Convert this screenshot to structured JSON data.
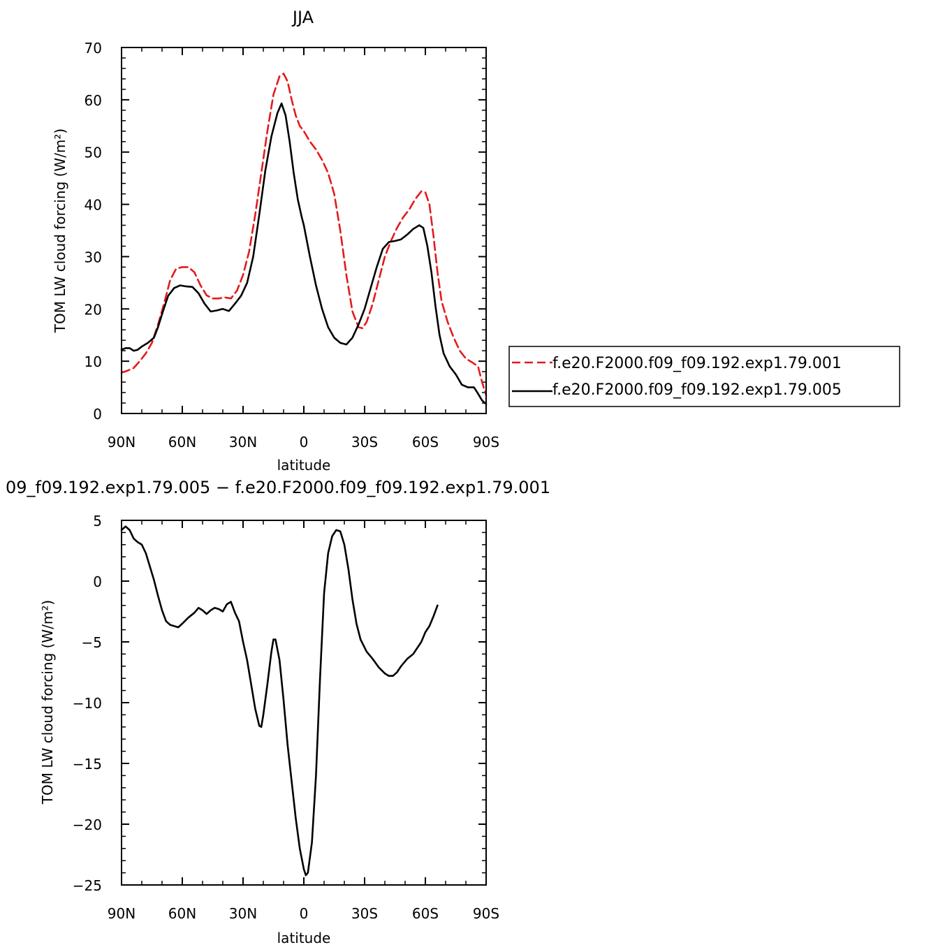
{
  "chart_data": [
    {
      "type": "line",
      "title": "JJA",
      "xlabel": "latitude",
      "ylabel": "TOM LW cloud forcing (W/m²)",
      "xlim": [
        90,
        -90
      ],
      "ylim": [
        0,
        70
      ],
      "x_ticks": [
        {
          "value": 90,
          "label": "90N"
        },
        {
          "value": 60,
          "label": "60N"
        },
        {
          "value": 30,
          "label": "30N"
        },
        {
          "value": 0,
          "label": "0"
        },
        {
          "value": -30,
          "label": "30S"
        },
        {
          "value": -60,
          "label": "60S"
        },
        {
          "value": -90,
          "label": "90S"
        }
      ],
      "y_ticks": [
        {
          "value": 0,
          "label": "0"
        },
        {
          "value": 10,
          "label": "10"
        },
        {
          "value": 20,
          "label": "20"
        },
        {
          "value": 30,
          "label": "30"
        },
        {
          "value": 40,
          "label": "40"
        },
        {
          "value": 50,
          "label": "50"
        },
        {
          "value": 60,
          "label": "60"
        },
        {
          "value": 70,
          "label": "70"
        }
      ],
      "grid": false,
      "legend_position": "right",
      "series": [
        {
          "name": "f.e20.F2000.f09_f09.192.exp1.79.001",
          "color": "#e41a1c",
          "dash": "dashed",
          "points": [
            [
              90,
              7.8
            ],
            [
              87,
              8.2
            ],
            [
              84,
              8.7
            ],
            [
              81,
              10
            ],
            [
              78,
              11.5
            ],
            [
              75,
              13.5
            ],
            [
              72,
              17
            ],
            [
              69,
              21
            ],
            [
              66,
              25.5
            ],
            [
              63,
              27.7
            ],
            [
              60,
              28
            ],
            [
              57,
              28
            ],
            [
              54,
              27
            ],
            [
              51,
              24.5
            ],
            [
              48,
              22.6
            ],
            [
              45,
              22
            ],
            [
              42,
              22
            ],
            [
              39,
              22.2
            ],
            [
              36,
              22
            ],
            [
              33,
              23.5
            ],
            [
              30,
              26.5
            ],
            [
              27,
              31
            ],
            [
              24,
              38
            ],
            [
              21,
              46
            ],
            [
              18,
              54
            ],
            [
              15,
              61
            ],
            [
              12,
              64.5
            ],
            [
              10,
              65
            ],
            [
              8,
              63.5
            ],
            [
              6,
              60
            ],
            [
              4,
              57
            ],
            [
              2,
              55
            ],
            [
              0,
              54
            ],
            [
              -3,
              52
            ],
            [
              -6,
              50.5
            ],
            [
              -9,
              48.5
            ],
            [
              -12,
              46
            ],
            [
              -15,
              42
            ],
            [
              -18,
              35
            ],
            [
              -21,
              26.5
            ],
            [
              -24,
              19.5
            ],
            [
              -27,
              16.5
            ],
            [
              -29,
              16.3
            ],
            [
              -31,
              17.5
            ],
            [
              -34,
              21
            ],
            [
              -37,
              25.5
            ],
            [
              -40,
              30
            ],
            [
              -43,
              33
            ],
            [
              -46,
              35.5
            ],
            [
              -49,
              37.5
            ],
            [
              -52,
              39
            ],
            [
              -55,
              41
            ],
            [
              -58,
              42.5
            ],
            [
              -60,
              42.3
            ],
            [
              -62,
              40
            ],
            [
              -64,
              34
            ],
            [
              -66,
              27
            ],
            [
              -68,
              21.5
            ],
            [
              -71,
              17.5
            ],
            [
              -74,
              14.5
            ],
            [
              -77,
              12
            ],
            [
              -80,
              10.5
            ],
            [
              -83,
              9.8
            ],
            [
              -86,
              9
            ],
            [
              -88,
              6
            ],
            [
              -90,
              3.5
            ]
          ]
        },
        {
          "name": "f.e20.F2000.f09_f09.192.exp1.79.005",
          "color": "#000000",
          "dash": "solid",
          "points": [
            [
              90,
              12.2
            ],
            [
              88,
              12.5
            ],
            [
              86,
              12.5
            ],
            [
              84,
              12
            ],
            [
              82,
              12.2
            ],
            [
              80,
              12.8
            ],
            [
              77,
              13.5
            ],
            [
              74,
              14.5
            ],
            [
              72,
              16.5
            ],
            [
              70,
              19
            ],
            [
              67,
              22.5
            ],
            [
              64,
              24
            ],
            [
              61,
              24.5
            ],
            [
              58,
              24.3
            ],
            [
              55,
              24.2
            ],
            [
              52,
              23
            ],
            [
              49,
              21
            ],
            [
              46,
              19.5
            ],
            [
              43,
              19.7
            ],
            [
              40,
              20
            ],
            [
              37,
              19.6
            ],
            [
              34,
              21
            ],
            [
              31,
              22.5
            ],
            [
              28,
              25
            ],
            [
              25,
              30
            ],
            [
              22,
              38
            ],
            [
              19,
              46.5
            ],
            [
              16,
              53
            ],
            [
              13,
              57.5
            ],
            [
              11,
              59.3
            ],
            [
              9,
              57
            ],
            [
              7,
              52
            ],
            [
              5,
              46
            ],
            [
              3,
              41
            ],
            [
              1,
              37.5
            ],
            [
              0,
              36
            ],
            [
              -3,
              30
            ],
            [
              -6,
              24.5
            ],
            [
              -9,
              20
            ],
            [
              -12,
              16.5
            ],
            [
              -15,
              14.5
            ],
            [
              -18,
              13.5
            ],
            [
              -21,
              13.2
            ],
            [
              -24,
              14.5
            ],
            [
              -27,
              17
            ],
            [
              -30,
              20
            ],
            [
              -33,
              24
            ],
            [
              -36,
              28
            ],
            [
              -39,
              31.5
            ],
            [
              -42,
              32.8
            ],
            [
              -45,
              33
            ],
            [
              -48,
              33.3
            ],
            [
              -51,
              34.2
            ],
            [
              -54,
              35.3
            ],
            [
              -57,
              36
            ],
            [
              -59,
              35.5
            ],
            [
              -61,
              32
            ],
            [
              -63,
              27
            ],
            [
              -65,
              20.5
            ],
            [
              -67,
              15
            ],
            [
              -69,
              11.5
            ],
            [
              -72,
              9
            ],
            [
              -75,
              7.5
            ],
            [
              -78,
              5.5
            ],
            [
              -81,
              5
            ],
            [
              -84,
              5
            ],
            [
              -86,
              3.8
            ],
            [
              -88,
              2.5
            ],
            [
              -90,
              1.8
            ]
          ]
        }
      ]
    },
    {
      "type": "line",
      "title": "09_f09.192.exp1.79.005 − f.e20.F2000.f09_f09.192.exp1.79.001",
      "xlabel": "latitude",
      "ylabel": "TOM LW cloud forcing (W/m²)",
      "xlim": [
        90,
        -90
      ],
      "ylim": [
        -25,
        5
      ],
      "x_ticks": [
        {
          "value": 90,
          "label": "90N"
        },
        {
          "value": 60,
          "label": "60N"
        },
        {
          "value": 30,
          "label": "30N"
        },
        {
          "value": 0,
          "label": "0"
        },
        {
          "value": -30,
          "label": "30S"
        },
        {
          "value": -60,
          "label": "60S"
        },
        {
          "value": -90,
          "label": "90S"
        }
      ],
      "y_ticks": [
        {
          "value": -25,
          "label": "−25"
        },
        {
          "value": -20,
          "label": "−20"
        },
        {
          "value": -15,
          "label": "−15"
        },
        {
          "value": -10,
          "label": "−10"
        },
        {
          "value": -5,
          "label": "−5"
        },
        {
          "value": 0,
          "label": "0"
        },
        {
          "value": 5,
          "label": "5"
        }
      ],
      "grid": false,
      "series": [
        {
          "color": "#000000",
          "dash": "solid",
          "points": [
            [
              90,
              4.2
            ],
            [
              88,
              4.5
            ],
            [
              86,
              4.2
            ],
            [
              84,
              3.5
            ],
            [
              82,
              3.2
            ],
            [
              80,
              3
            ],
            [
              78,
              2.3
            ],
            [
              76,
              1.2
            ],
            [
              74,
              0.1
            ],
            [
              72,
              -1.2
            ],
            [
              70,
              -2.4
            ],
            [
              68,
              -3.3
            ],
            [
              66,
              -3.6
            ],
            [
              64,
              -3.7
            ],
            [
              62,
              -3.8
            ],
            [
              60,
              -3.5
            ],
            [
              57,
              -3
            ],
            [
              54,
              -2.6
            ],
            [
              52,
              -2.2
            ],
            [
              50,
              -2.4
            ],
            [
              48,
              -2.7
            ],
            [
              46,
              -2.4
            ],
            [
              44,
              -2.2
            ],
            [
              42,
              -2.3
            ],
            [
              40,
              -2.5
            ],
            [
              38,
              -1.9
            ],
            [
              36,
              -1.7
            ],
            [
              34,
              -2.6
            ],
            [
              32,
              -3.3
            ],
            [
              30,
              -5
            ],
            [
              28,
              -6.5
            ],
            [
              26,
              -8.5
            ],
            [
              24,
              -10.5
            ],
            [
              22,
              -11.9
            ],
            [
              21,
              -12
            ],
            [
              20,
              -11
            ],
            [
              18,
              -8.5
            ],
            [
              16,
              -5.8
            ],
            [
              15,
              -4.8
            ],
            [
              14,
              -4.8
            ],
            [
              12,
              -6.5
            ],
            [
              10,
              -9.8
            ],
            [
              8,
              -13.5
            ],
            [
              6,
              -16.5
            ],
            [
              4,
              -19.5
            ],
            [
              2,
              -22
            ],
            [
              0,
              -23.7
            ],
            [
              -1,
              -24.2
            ],
            [
              -2,
              -24
            ],
            [
              -4,
              -21.5
            ],
            [
              -6,
              -16
            ],
            [
              -8,
              -8
            ],
            [
              -10,
              -1
            ],
            [
              -12,
              2.3
            ],
            [
              -14,
              3.7
            ],
            [
              -16,
              4.2
            ],
            [
              -18,
              4.1
            ],
            [
              -20,
              3
            ],
            [
              -22,
              1
            ],
            [
              -24,
              -1.5
            ],
            [
              -26,
              -3.5
            ],
            [
              -28,
              -4.8
            ],
            [
              -31,
              -5.8
            ],
            [
              -34,
              -6.4
            ],
            [
              -37,
              -7.1
            ],
            [
              -40,
              -7.6
            ],
            [
              -42,
              -7.8
            ],
            [
              -44,
              -7.8
            ],
            [
              -46,
              -7.5
            ],
            [
              -48,
              -7
            ],
            [
              -51,
              -6.4
            ],
            [
              -54,
              -6
            ],
            [
              -56,
              -5.5
            ],
            [
              -58,
              -5
            ],
            [
              -60,
              -4.2
            ],
            [
              -62,
              -3.7
            ],
            [
              -64,
              -2.9
            ],
            [
              -66,
              -2
            ]
          ]
        }
      ]
    }
  ]
}
